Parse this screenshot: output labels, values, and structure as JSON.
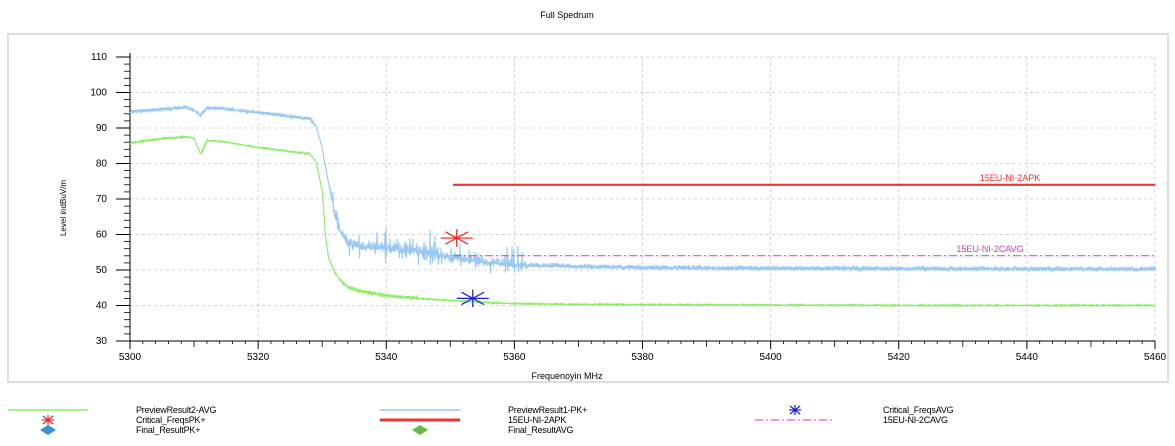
{
  "chart_data": {
    "type": "line",
    "title": "Full Spedrum",
    "xlabel": "Frequenoyin MHz",
    "ylabel": "Level indBuV/m",
    "xlim": [
      5300,
      5460
    ],
    "ylim": [
      30,
      110
    ],
    "x_ticks": [
      5300,
      5320,
      5340,
      5360,
      5380,
      5400,
      5420,
      5440,
      5460
    ],
    "y_ticks": [
      30,
      40,
      50,
      60,
      70,
      80,
      90,
      100,
      110
    ],
    "grid": true,
    "legend_position": "bottom",
    "series": [
      {
        "name": "PreviewResult1-PK+",
        "color": "#99c9f2",
        "x": [
          5300,
          5305,
          5309,
          5310,
          5311,
          5312,
          5315,
          5320,
          5325,
          5328,
          5329,
          5330,
          5331,
          5332,
          5333,
          5334,
          5336,
          5338,
          5340,
          5342,
          5344,
          5346,
          5348,
          5350,
          5352,
          5355,
          5358,
          5362,
          5370,
          5380,
          5400,
          5420,
          5440,
          5460
        ],
        "y": [
          94.5,
          95.2,
          95.8,
          95.0,
          93.5,
          95.6,
          95.3,
          94.3,
          93.2,
          92.5,
          90.5,
          84.0,
          74.0,
          65.0,
          60.0,
          57.5,
          56.5,
          56.5,
          56.0,
          55.8,
          55.3,
          54.8,
          54.2,
          53.5,
          53.0,
          52.3,
          51.8,
          51.3,
          50.9,
          50.6,
          50.4,
          50.3,
          50.2,
          50.2
        ]
      },
      {
        "name": "PreviewResult2-AVG",
        "color": "#88ee66",
        "x": [
          5300,
          5305,
          5309,
          5310,
          5311,
          5312,
          5315,
          5320,
          5325,
          5328,
          5329,
          5330,
          5330.5,
          5331,
          5332,
          5333,
          5334,
          5336,
          5338,
          5340,
          5344,
          5348,
          5352,
          5356,
          5360,
          5370,
          5380,
          5400,
          5420,
          5440,
          5460
        ],
        "y": [
          85.8,
          87.0,
          87.5,
          87.0,
          82.5,
          86.5,
          86.0,
          84.5,
          83.3,
          82.7,
          80.5,
          72.0,
          59.0,
          53.0,
          49.0,
          46.5,
          45.0,
          44.0,
          43.3,
          42.8,
          42.1,
          41.6,
          41.2,
          40.8,
          40.5,
          40.3,
          40.2,
          40.1,
          40.0,
          40.0,
          40.0
        ]
      },
      {
        "name": "15EU-NI-2APK",
        "color": "#ee3333",
        "x": [
          5350.4,
          5460
        ],
        "y": [
          74,
          74
        ]
      },
      {
        "name": "15EU-NI-2CAVG",
        "color": "#dd33cc",
        "x": [
          5350.4,
          5460
        ],
        "y": [
          54,
          54
        ]
      }
    ],
    "markers": [
      {
        "name": "Critical_FreqsPK+",
        "x": 5351.0,
        "y": 59.0,
        "color": "#ee2222"
      },
      {
        "name": "Critical_FreqsAVG",
        "x": 5353.5,
        "y": 42.0,
        "color": "#1a1adb"
      }
    ],
    "annotations": [
      {
        "text": "15EU-NI-2APK",
        "color": "#ee3333"
      },
      {
        "text": "15EU-NI-2CAVG",
        "color": "#dd33cc"
      }
    ]
  },
  "legend": {
    "items": [
      {
        "label": "PreviewResult2-AVG",
        "symbol": "line",
        "color": "#88ee66"
      },
      {
        "label": "PreviewResult1-PK+",
        "symbol": "line",
        "color": "#99c9f2"
      },
      {
        "label": "Critical_FreqsAVG",
        "symbol": "star",
        "color": "#1a1adb"
      },
      {
        "label": "Critical_FreqsPK+",
        "symbol": "star",
        "color": "#ee2222"
      },
      {
        "label": "15EU-NI-2APK",
        "symbol": "thickline",
        "color": "#ee3333"
      },
      {
        "label": "15EU-NI-2CAVG",
        "symbol": "dashdot",
        "color": "#dd33cc"
      },
      {
        "label": "Final_ResultPK+",
        "symbol": "diamond",
        "color": "#3b8fd9"
      },
      {
        "label": "Final_ResultAVG",
        "symbol": "diamond",
        "color": "#66bb44"
      }
    ]
  }
}
